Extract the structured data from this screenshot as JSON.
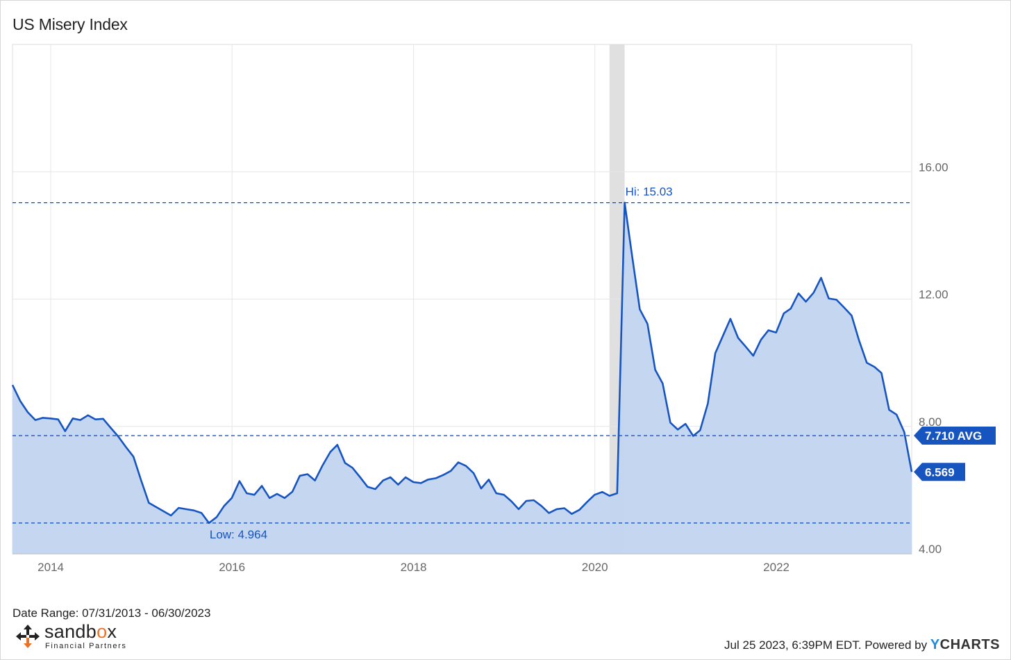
{
  "header": {
    "title": "US Misery Index"
  },
  "footer": {
    "date_range": "Date Range: 07/31/2013 - 06/30/2023",
    "timestamp": "Jul 25 2023, 6:39PM EDT.",
    "powered_by": "Powered by",
    "ycharts_y": "Y",
    "ycharts_rest": "CHARTS",
    "logo_word_start": "sandb",
    "logo_word_o": "o",
    "logo_word_end": "x",
    "logo_sub": "Financial Partners"
  },
  "colors": {
    "line": "#1654c0",
    "area": "#c2d4f0",
    "recession": "#e0e0e0",
    "grid": "#e6e6e6",
    "logo_accent": "#e8742c"
  },
  "chart_data": {
    "type": "area",
    "title": "US Misery Index",
    "xlabel": "",
    "ylabel": "",
    "xlim": [
      "2013-07-31",
      "2023-06-30"
    ],
    "ylim": [
      4,
      20
    ],
    "x_ticks": [
      "2014",
      "2016",
      "2018",
      "2020",
      "2022"
    ],
    "y_ticks": [
      "4.00",
      "8.00",
      "12.00",
      "16.00"
    ],
    "y_axis_side": "right",
    "grid": true,
    "recession_shading": [
      "2020-02-29",
      "2020-04-30"
    ],
    "series": [
      {
        "values": [
          {
            "x": "2013-07-31",
            "y": 9.3
          },
          {
            "x": "2013-08-31",
            "y": 8.8
          },
          {
            "x": "2013-09-30",
            "y": 8.45
          },
          {
            "x": "2013-10-31",
            "y": 8.2
          },
          {
            "x": "2013-11-30",
            "y": 8.27
          },
          {
            "x": "2013-12-31",
            "y": 8.25
          },
          {
            "x": "2014-01-31",
            "y": 8.22
          },
          {
            "x": "2014-02-28",
            "y": 7.85
          },
          {
            "x": "2014-03-31",
            "y": 8.25
          },
          {
            "x": "2014-04-30",
            "y": 8.2
          },
          {
            "x": "2014-05-31",
            "y": 8.35
          },
          {
            "x": "2014-06-30",
            "y": 8.22
          },
          {
            "x": "2014-07-31",
            "y": 8.24
          },
          {
            "x": "2014-08-31",
            "y": 7.95
          },
          {
            "x": "2014-09-30",
            "y": 7.68
          },
          {
            "x": "2014-10-31",
            "y": 7.35
          },
          {
            "x": "2014-11-30",
            "y": 7.05
          },
          {
            "x": "2014-12-31",
            "y": 6.3
          },
          {
            "x": "2015-01-31",
            "y": 5.6
          },
          {
            "x": "2015-04-30",
            "y": 5.2
          },
          {
            "x": "2015-05-31",
            "y": 5.44
          },
          {
            "x": "2015-06-30",
            "y": 5.4
          },
          {
            "x": "2015-07-31",
            "y": 5.36
          },
          {
            "x": "2015-08-31",
            "y": 5.28
          },
          {
            "x": "2015-09-30",
            "y": 4.964
          },
          {
            "x": "2015-10-31",
            "y": 5.15
          },
          {
            "x": "2015-11-30",
            "y": 5.5
          },
          {
            "x": "2015-12-31",
            "y": 5.75
          },
          {
            "x": "2016-01-31",
            "y": 6.28
          },
          {
            "x": "2016-02-29",
            "y": 5.9
          },
          {
            "x": "2016-03-31",
            "y": 5.85
          },
          {
            "x": "2016-04-30",
            "y": 6.13
          },
          {
            "x": "2016-05-31",
            "y": 5.75
          },
          {
            "x": "2016-06-30",
            "y": 5.88
          },
          {
            "x": "2016-07-31",
            "y": 5.75
          },
          {
            "x": "2016-08-31",
            "y": 5.95
          },
          {
            "x": "2016-09-30",
            "y": 6.45
          },
          {
            "x": "2016-10-31",
            "y": 6.5
          },
          {
            "x": "2016-11-30",
            "y": 6.3
          },
          {
            "x": "2016-12-31",
            "y": 6.78
          },
          {
            "x": "2017-01-31",
            "y": 7.2
          },
          {
            "x": "2017-02-28",
            "y": 7.42
          },
          {
            "x": "2017-03-31",
            "y": 6.85
          },
          {
            "x": "2017-04-30",
            "y": 6.7
          },
          {
            "x": "2017-05-31",
            "y": 6.4
          },
          {
            "x": "2017-06-30",
            "y": 6.1
          },
          {
            "x": "2017-07-31",
            "y": 6.03
          },
          {
            "x": "2017-08-31",
            "y": 6.3
          },
          {
            "x": "2017-09-30",
            "y": 6.4
          },
          {
            "x": "2017-10-31",
            "y": 6.17
          },
          {
            "x": "2017-11-30",
            "y": 6.4
          },
          {
            "x": "2017-12-31",
            "y": 6.25
          },
          {
            "x": "2018-01-31",
            "y": 6.22
          },
          {
            "x": "2018-02-28",
            "y": 6.33
          },
          {
            "x": "2018-03-31",
            "y": 6.37
          },
          {
            "x": "2018-04-30",
            "y": 6.47
          },
          {
            "x": "2018-05-31",
            "y": 6.6
          },
          {
            "x": "2018-06-30",
            "y": 6.87
          },
          {
            "x": "2018-07-31",
            "y": 6.76
          },
          {
            "x": "2018-08-31",
            "y": 6.53
          },
          {
            "x": "2018-09-30",
            "y": 6.05
          },
          {
            "x": "2018-10-31",
            "y": 6.33
          },
          {
            "x": "2018-11-30",
            "y": 5.9
          },
          {
            "x": "2018-12-31",
            "y": 5.85
          },
          {
            "x": "2019-01-31",
            "y": 5.64
          },
          {
            "x": "2019-02-28",
            "y": 5.4
          },
          {
            "x": "2019-03-31",
            "y": 5.66
          },
          {
            "x": "2019-04-30",
            "y": 5.68
          },
          {
            "x": "2019-05-31",
            "y": 5.5
          },
          {
            "x": "2019-06-30",
            "y": 5.28
          },
          {
            "x": "2019-07-31",
            "y": 5.4
          },
          {
            "x": "2019-08-31",
            "y": 5.43
          },
          {
            "x": "2019-09-30",
            "y": 5.25
          },
          {
            "x": "2019-10-31",
            "y": 5.38
          },
          {
            "x": "2019-11-30",
            "y": 5.62
          },
          {
            "x": "2019-12-31",
            "y": 5.85
          },
          {
            "x": "2020-01-31",
            "y": 5.94
          },
          {
            "x": "2020-02-29",
            "y": 5.82
          },
          {
            "x": "2020-03-31",
            "y": 5.9
          },
          {
            "x": "2020-04-30",
            "y": 15.03
          },
          {
            "x": "2020-05-31",
            "y": 13.3
          },
          {
            "x": "2020-06-30",
            "y": 11.68
          },
          {
            "x": "2020-07-31",
            "y": 11.22
          },
          {
            "x": "2020-08-31",
            "y": 9.78
          },
          {
            "x": "2020-09-30",
            "y": 9.35
          },
          {
            "x": "2020-10-31",
            "y": 8.12
          },
          {
            "x": "2020-11-30",
            "y": 7.9
          },
          {
            "x": "2020-12-31",
            "y": 8.08
          },
          {
            "x": "2021-01-31",
            "y": 7.7
          },
          {
            "x": "2021-02-28",
            "y": 7.88
          },
          {
            "x": "2021-03-31",
            "y": 8.72
          },
          {
            "x": "2021-04-30",
            "y": 10.3
          },
          {
            "x": "2021-05-31",
            "y": 10.85
          },
          {
            "x": "2021-06-30",
            "y": 11.38
          },
          {
            "x": "2021-07-31",
            "y": 10.78
          },
          {
            "x": "2021-08-31",
            "y": 10.5
          },
          {
            "x": "2021-09-30",
            "y": 10.22
          },
          {
            "x": "2021-10-31",
            "y": 10.72
          },
          {
            "x": "2021-11-30",
            "y": 11.02
          },
          {
            "x": "2021-12-31",
            "y": 10.95
          },
          {
            "x": "2022-01-31",
            "y": 11.55
          },
          {
            "x": "2022-02-28",
            "y": 11.7
          },
          {
            "x": "2022-03-31",
            "y": 12.18
          },
          {
            "x": "2022-04-30",
            "y": 11.92
          },
          {
            "x": "2022-05-31",
            "y": 12.2
          },
          {
            "x": "2022-06-30",
            "y": 12.67
          },
          {
            "x": "2022-07-31",
            "y": 12.02
          },
          {
            "x": "2022-08-31",
            "y": 11.98
          },
          {
            "x": "2022-09-30",
            "y": 11.74
          },
          {
            "x": "2022-10-31",
            "y": 11.48
          },
          {
            "x": "2022-11-30",
            "y": 10.7
          },
          {
            "x": "2022-12-31",
            "y": 10.0
          },
          {
            "x": "2023-01-31",
            "y": 9.87
          },
          {
            "x": "2023-02-28",
            "y": 9.68
          },
          {
            "x": "2023-03-31",
            "y": 8.52
          },
          {
            "x": "2023-04-30",
            "y": 8.37
          },
          {
            "x": "2023-05-31",
            "y": 7.82
          },
          {
            "x": "2023-06-30",
            "y": 6.569
          }
        ]
      }
    ],
    "reference_lines": [
      {
        "label": "Hi: 15.03",
        "value": 15.03
      },
      {
        "label": "7.710 AVG",
        "value": 7.71
      },
      {
        "label": "Low: 4.964",
        "value": 4.964
      }
    ],
    "last_value_label": "6.569",
    "last_value": 6.569
  }
}
